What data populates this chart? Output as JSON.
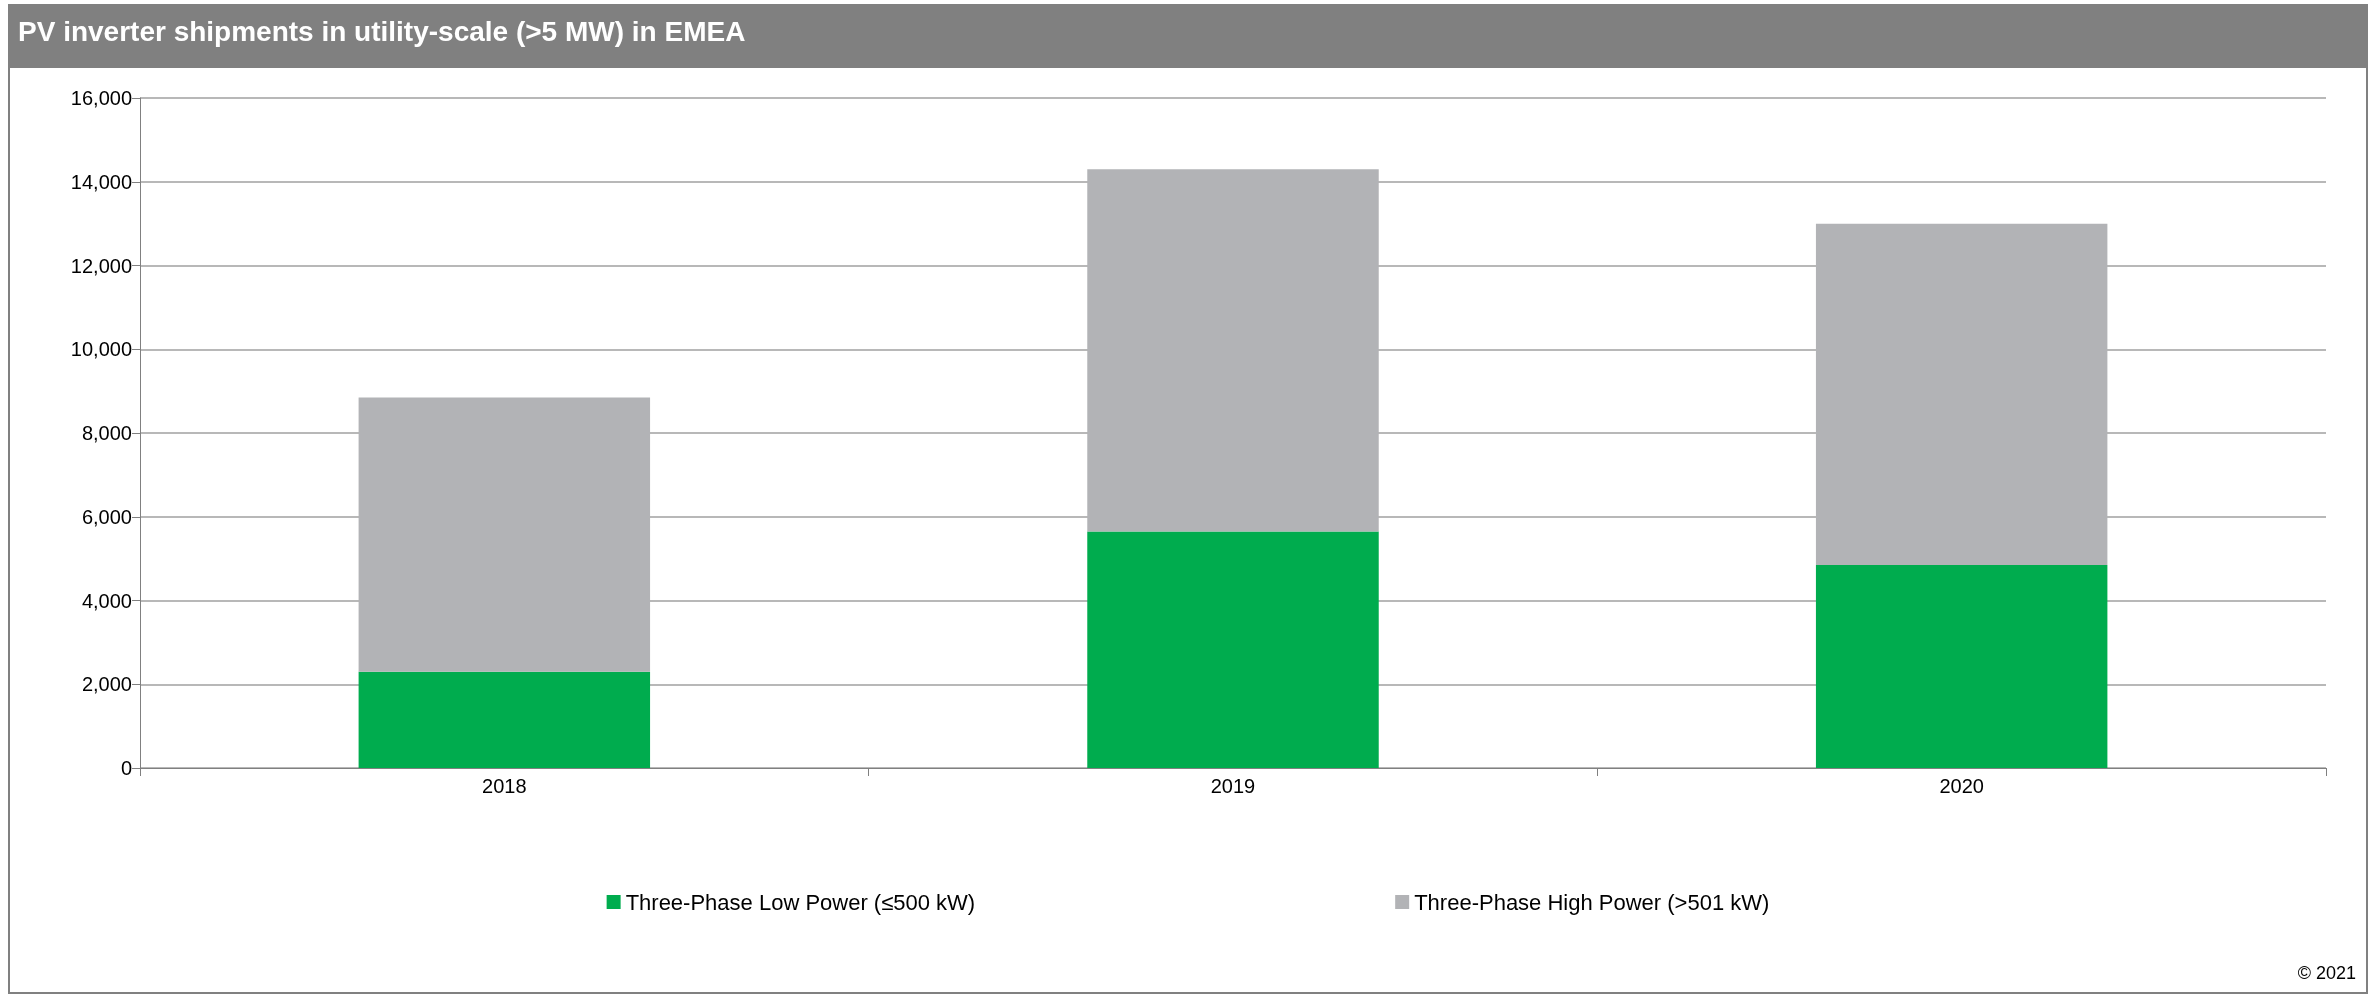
{
  "chart_data": {
    "type": "bar",
    "title": "PV inverter shipments in utility-scale (>5 MW) in EMEA",
    "categories": [
      "2018",
      "2019",
      "2020"
    ],
    "series": [
      {
        "name": "Three-Phase Low Power (≤500 kW)",
        "color": "#00ac4e",
        "values": [
          2300,
          5650,
          4850
        ]
      },
      {
        "name": "Three-Phase High Power (>501 kW)",
        "color": "#b2b3b6",
        "values": [
          6550,
          8650,
          8150
        ]
      }
    ],
    "stacked": true,
    "ylim": [
      0,
      16000
    ],
    "yticks": [
      0,
      {
        "value": 2000,
        "label": "2,000"
      },
      {
        "value": 4000,
        "label": "4,000"
      },
      {
        "value": 6000,
        "label": "6,000"
      },
      {
        "value": 8000,
        "label": "8,000"
      },
      {
        "value": 10000,
        "label": "10,000"
      },
      {
        "value": 12000,
        "label": "12,000"
      },
      {
        "value": 14000,
        "label": "14,000"
      },
      {
        "value": 16000,
        "label": "16,000"
      }
    ],
    "grid": "y",
    "legend": "bottom",
    "annotations": [
      "© 2021"
    ]
  }
}
